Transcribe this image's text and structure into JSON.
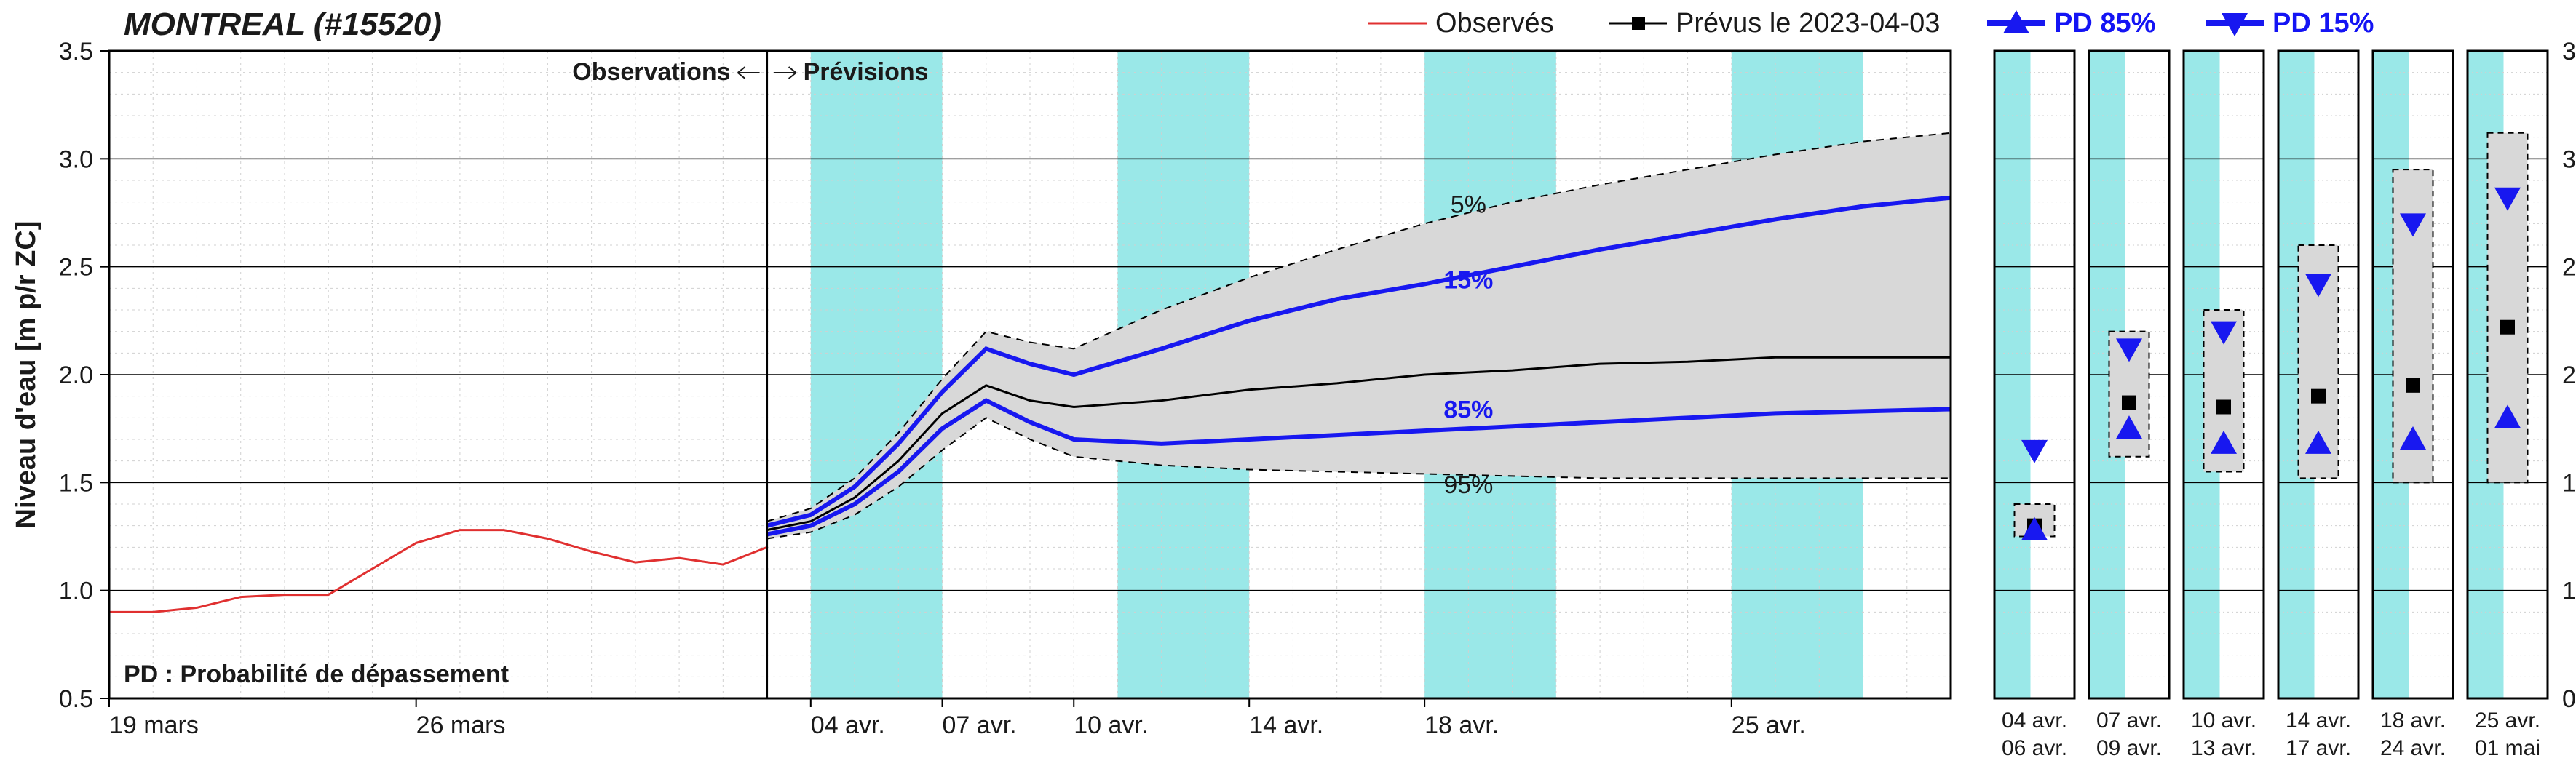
{
  "title": "MONTREAL (#15520)",
  "ylabel": "Niveau d'eau [m p/r ZC]",
  "footer_text": "PD : Probabilité de dépassement",
  "obs_label": "Observations",
  "prev_label": "Prévisions",
  "legend": {
    "observed": "Observés",
    "forecast": "Prévus le 2023-04-03",
    "pd85": "PD 85%",
    "pd15": "PD 15%"
  },
  "colors": {
    "bg": "#ffffff",
    "text": "#1a1a1a",
    "axis": "#000000",
    "grid_minor": "#d0d0d0",
    "grid_major": "#000000",
    "weekend_band": "#9ae8e8",
    "observed_line": "#e03030",
    "forecast_line": "#000000",
    "pd_line": "#1818f0",
    "envelope_fill": "#d8d8d8",
    "envelope_border": "#000000",
    "legend_pd": "#1414f4"
  },
  "font_sizes": {
    "title": 44,
    "axis_label": 38,
    "tick": 34,
    "legend": 38,
    "annotation": 34,
    "footer": 34,
    "minipanel_tick": 30
  },
  "main_chart": {
    "type": "timeseries",
    "x_days": {
      "min": 0,
      "max": 42
    },
    "y": {
      "min": 0.5,
      "max": 3.5,
      "major_step": 0.5
    },
    "x_ticks": [
      {
        "day": 0,
        "label": "19 mars"
      },
      {
        "day": 7,
        "label": "26 mars"
      },
      {
        "day": 16,
        "label": "04 avr."
      },
      {
        "day": 19,
        "label": "07 avr."
      },
      {
        "day": 22,
        "label": "10 avr."
      },
      {
        "day": 26,
        "label": "14 avr."
      },
      {
        "day": 30,
        "label": "18 avr."
      },
      {
        "day": 37,
        "label": "25 avr."
      }
    ],
    "split_day": 15,
    "weekend_bands_days": [
      [
        16,
        19
      ],
      [
        23,
        26
      ],
      [
        30,
        33
      ],
      [
        37,
        40
      ]
    ],
    "observed": {
      "x": [
        0,
        1,
        2,
        3,
        4,
        5,
        6,
        7,
        8,
        9,
        10,
        11,
        12,
        13,
        14,
        15
      ],
      "y": [
        0.9,
        0.9,
        0.92,
        0.97,
        0.98,
        0.98,
        1.1,
        1.22,
        1.28,
        1.28,
        1.24,
        1.18,
        1.13,
        1.15,
        1.12,
        1.2
      ]
    },
    "forecast_median": {
      "x": [
        15,
        16,
        17,
        18,
        19,
        20,
        21,
        22,
        24,
        26,
        28,
        30,
        32,
        34,
        36,
        38,
        40,
        42
      ],
      "y": [
        1.28,
        1.32,
        1.43,
        1.6,
        1.82,
        1.95,
        1.88,
        1.85,
        1.88,
        1.93,
        1.96,
        2.0,
        2.02,
        2.05,
        2.06,
        2.08,
        2.08,
        2.08
      ]
    },
    "pd85": {
      "x": [
        15,
        16,
        17,
        18,
        19,
        20,
        21,
        22,
        24,
        26,
        28,
        30,
        32,
        34,
        36,
        38,
        40,
        42
      ],
      "y": [
        1.26,
        1.3,
        1.4,
        1.55,
        1.75,
        1.88,
        1.78,
        1.7,
        1.68,
        1.7,
        1.72,
        1.74,
        1.76,
        1.78,
        1.8,
        1.82,
        1.83,
        1.84
      ]
    },
    "pd15": {
      "x": [
        15,
        16,
        17,
        18,
        19,
        20,
        21,
        22,
        24,
        26,
        28,
        30,
        32,
        34,
        36,
        38,
        40,
        42
      ],
      "y": [
        1.3,
        1.35,
        1.48,
        1.68,
        1.92,
        2.12,
        2.05,
        2.0,
        2.12,
        2.25,
        2.35,
        2.42,
        2.5,
        2.58,
        2.65,
        2.72,
        2.78,
        2.82
      ]
    },
    "env5": {
      "x": [
        15,
        16,
        17,
        18,
        19,
        20,
        21,
        22,
        24,
        26,
        28,
        30,
        32,
        34,
        36,
        38,
        40,
        42
      ],
      "y": [
        1.32,
        1.38,
        1.52,
        1.73,
        1.98,
        2.2,
        2.15,
        2.12,
        2.3,
        2.45,
        2.58,
        2.7,
        2.8,
        2.88,
        2.95,
        3.02,
        3.08,
        3.12
      ]
    },
    "env95": {
      "x": [
        15,
        16,
        17,
        18,
        19,
        20,
        21,
        22,
        24,
        26,
        28,
        30,
        32,
        34,
        36,
        38,
        40,
        42
      ],
      "y": [
        1.24,
        1.27,
        1.35,
        1.48,
        1.65,
        1.8,
        1.7,
        1.62,
        1.58,
        1.56,
        1.55,
        1.54,
        1.53,
        1.52,
        1.52,
        1.52,
        1.52,
        1.52
      ]
    },
    "annotation_5pct": "5%",
    "annotation_15pct": "15%",
    "annotation_85pct": "85%",
    "annotation_95pct": "95%"
  },
  "mini_panels": [
    {
      "label_top": "04 avr.",
      "label_bot": "06 avr.",
      "env_lo": 1.25,
      "env_hi": 1.4,
      "pd85": 1.28,
      "median": 1.3,
      "pd15": 1.65
    },
    {
      "label_top": "07 avr.",
      "label_bot": "09 avr.",
      "env_lo": 1.62,
      "env_hi": 2.2,
      "pd85": 1.75,
      "median": 1.87,
      "pd15": 2.12
    },
    {
      "label_top": "10 avr.",
      "label_bot": "13 avr.",
      "env_lo": 1.55,
      "env_hi": 2.3,
      "pd85": 1.68,
      "median": 1.85,
      "pd15": 2.2
    },
    {
      "label_top": "14 avr.",
      "label_bot": "17 avr.",
      "env_lo": 1.52,
      "env_hi": 2.6,
      "pd85": 1.68,
      "median": 1.9,
      "pd15": 2.42
    },
    {
      "label_top": "18 avr.",
      "label_bot": "24 avr.",
      "env_lo": 1.5,
      "env_hi": 2.95,
      "pd85": 1.7,
      "median": 1.95,
      "pd15": 2.7
    },
    {
      "label_top": "25 avr.",
      "label_bot": "01 mai",
      "env_lo": 1.5,
      "env_hi": 3.12,
      "pd85": 1.8,
      "median": 2.22,
      "pd15": 2.82
    }
  ]
}
